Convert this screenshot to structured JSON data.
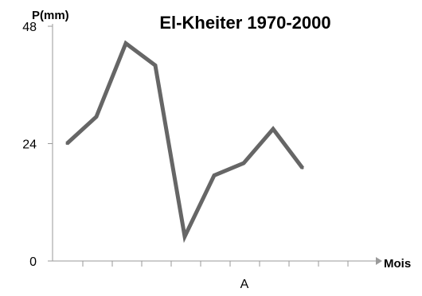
{
  "chart_data": {
    "type": "line",
    "title": "El-Kheiter 1970-2000",
    "ylabel": "P(mm)",
    "xlabel": "Mois",
    "ylim": [
      0,
      48
    ],
    "yticks": [
      0,
      24,
      48
    ],
    "grid": false,
    "annotation": "A",
    "series": [
      {
        "color": "#666666",
        "values": [
          24,
          29.5,
          44.5,
          40,
          5,
          17.5,
          20,
          27,
          19
        ]
      }
    ]
  }
}
